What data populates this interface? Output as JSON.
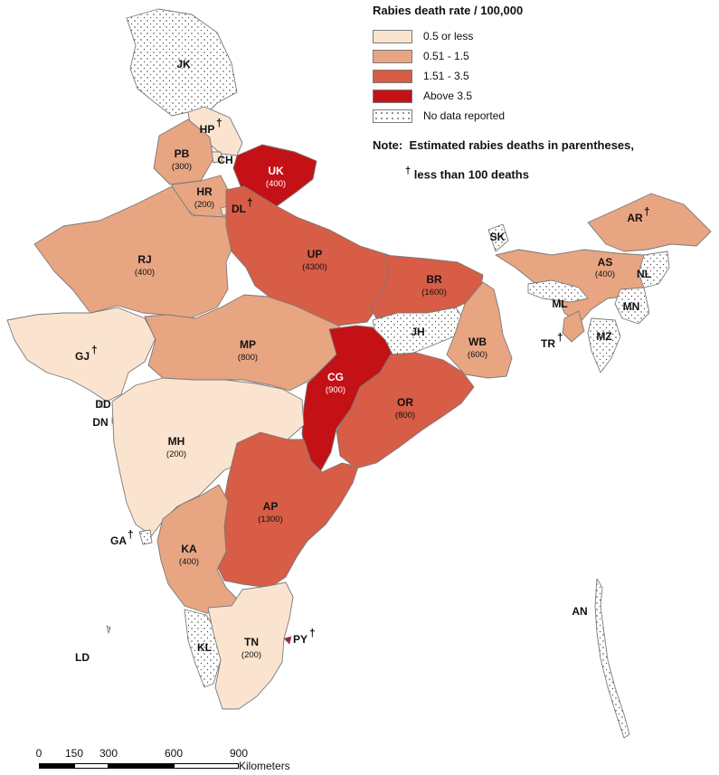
{
  "legend": {
    "title": "Rabies death rate / 100,000",
    "items": [
      {
        "label": "0.5 or less",
        "color": "#fbe4cf"
      },
      {
        "label": "0.51 - 1.5",
        "color": "#e8a582"
      },
      {
        "label": "1.51 - 3.5",
        "color": "#d75d46"
      },
      {
        "label": "Above 3.5",
        "color": "#c41116"
      },
      {
        "label": "No data reported",
        "color": "#ffffff",
        "pattern": "dots"
      }
    ],
    "note_label": "Note:",
    "note_line1": "Estimated rabies deaths in parentheses,",
    "note_dagger": "†",
    "note_line2": "less than 100 deaths"
  },
  "regions": [
    {
      "code": "JK",
      "deaths": "",
      "category": "no-data",
      "dagger": false
    },
    {
      "code": "HP",
      "deaths": "",
      "category": "0.5 or less",
      "dagger": true
    },
    {
      "code": "PB",
      "deaths": "(300)",
      "category": "0.51 - 1.5",
      "dagger": false
    },
    {
      "code": "CH",
      "deaths": "",
      "category": "0.5 or less",
      "dagger": false
    },
    {
      "code": "UK",
      "deaths": "(400)",
      "category": "Above 3.5",
      "dagger": false
    },
    {
      "code": "HR",
      "deaths": "(200)",
      "category": "0.51 - 1.5",
      "dagger": false
    },
    {
      "code": "DL",
      "deaths": "",
      "category": "0.5 or less",
      "dagger": true
    },
    {
      "code": "RJ",
      "deaths": "(400)",
      "category": "0.51 - 1.5",
      "dagger": false
    },
    {
      "code": "UP",
      "deaths": "(4300)",
      "category": "1.51 - 3.5",
      "dagger": false
    },
    {
      "code": "BR",
      "deaths": "(1600)",
      "category": "1.51 - 3.5",
      "dagger": false
    },
    {
      "code": "SK",
      "deaths": "",
      "category": "no-data",
      "dagger": false
    },
    {
      "code": "AR",
      "deaths": "",
      "category": "0.51 - 1.5",
      "dagger": true
    },
    {
      "code": "AS",
      "deaths": "(400)",
      "category": "0.51 - 1.5",
      "dagger": false
    },
    {
      "code": "NL",
      "deaths": "",
      "category": "no-data",
      "dagger": false
    },
    {
      "code": "ML",
      "deaths": "",
      "category": "no-data",
      "dagger": false
    },
    {
      "code": "MN",
      "deaths": "",
      "category": "no-data",
      "dagger": false
    },
    {
      "code": "TR",
      "deaths": "",
      "category": "0.51 - 1.5",
      "dagger": true
    },
    {
      "code": "MZ",
      "deaths": "",
      "category": "no-data",
      "dagger": false
    },
    {
      "code": "GJ",
      "deaths": "",
      "category": "0.5 or less",
      "dagger": true
    },
    {
      "code": "MP",
      "deaths": "(800)",
      "category": "0.51 - 1.5",
      "dagger": false
    },
    {
      "code": "JH",
      "deaths": "",
      "category": "no-data",
      "dagger": false
    },
    {
      "code": "WB",
      "deaths": "(600)",
      "category": "0.51 - 1.5",
      "dagger": false
    },
    {
      "code": "CG",
      "deaths": "(900)",
      "category": "Above 3.5",
      "dagger": false
    },
    {
      "code": "OR",
      "deaths": "(800)",
      "category": "1.51 - 3.5",
      "dagger": false
    },
    {
      "code": "DD",
      "deaths": "",
      "category": "no-data",
      "dagger": false
    },
    {
      "code": "DN",
      "deaths": "",
      "category": "no-data",
      "dagger": false
    },
    {
      "code": "MH",
      "deaths": "(200)",
      "category": "0.5 or less",
      "dagger": false
    },
    {
      "code": "AP",
      "deaths": "(1300)",
      "category": "1.51 - 3.5",
      "dagger": false
    },
    {
      "code": "GA",
      "deaths": "",
      "category": "no-data",
      "dagger": true
    },
    {
      "code": "KA",
      "deaths": "(400)",
      "category": "0.51 - 1.5",
      "dagger": false
    },
    {
      "code": "AN",
      "deaths": "",
      "category": "no-data",
      "dagger": false
    },
    {
      "code": "PY",
      "deaths": "",
      "category": "Above 3.5",
      "dagger": true
    },
    {
      "code": "LD",
      "deaths": "",
      "category": "no-data",
      "dagger": false
    },
    {
      "code": "KL",
      "deaths": "",
      "category": "no-data",
      "dagger": false
    },
    {
      "code": "TN",
      "deaths": "(200)",
      "category": "0.5 or less",
      "dagger": false
    }
  ],
  "scale": {
    "ticks": [
      "0",
      "150",
      "300",
      "600",
      "900"
    ],
    "unit": "Kilometers"
  }
}
